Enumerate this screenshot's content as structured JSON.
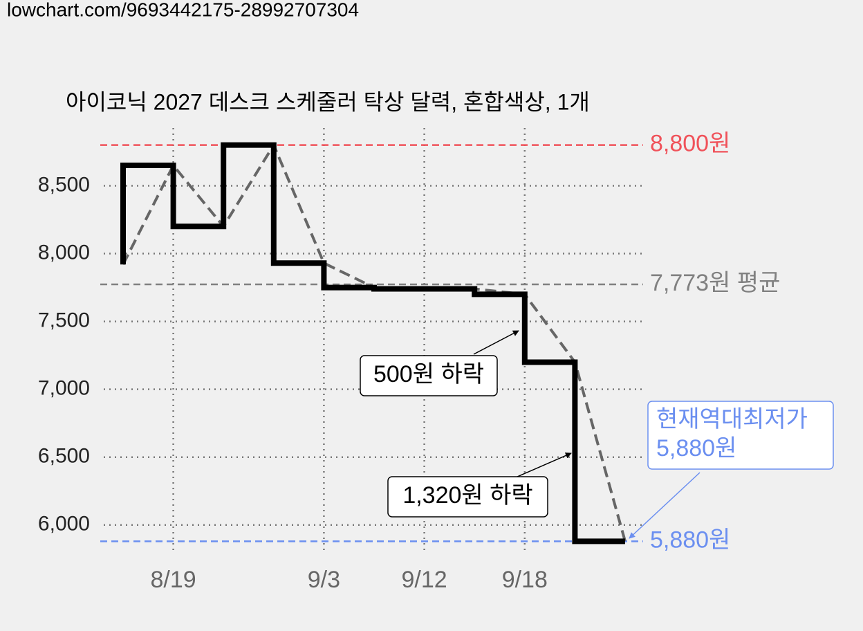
{
  "header": {
    "url": "lowchart.com/9693442175-28992707304"
  },
  "chart_data": {
    "type": "line",
    "title": "아이코닉 2027 데스크 스케줄러 탁상 달력, 혼합색상, 1개",
    "categories": [
      null,
      "8/19",
      null,
      null,
      "9/3",
      null,
      "9/12",
      null,
      "9/18",
      null,
      null
    ],
    "series": [
      {
        "color": "#000000",
        "dash_color": "#666666",
        "values": [
          7920,
          8650,
          8200,
          8800,
          7930,
          7750,
          7740,
          7740,
          7700,
          7200,
          5880
        ]
      }
    ],
    "step": "pre",
    "ylim": [
      5790,
      8900
    ],
    "yticks": [
      {
        "value": 6000,
        "label": "6,000"
      },
      {
        "value": 6500,
        "label": "6,500"
      },
      {
        "value": 7000,
        "label": "7,000"
      },
      {
        "value": 7500,
        "label": "7,500"
      },
      {
        "value": 8000,
        "label": "8,000"
      },
      {
        "value": 8500,
        "label": "8,500"
      }
    ],
    "grid": true,
    "reference_lines": [
      {
        "value": 8800,
        "label": "8,800원",
        "color": "#f0525a"
      },
      {
        "value": 7773,
        "label": "7,773원 평균",
        "color": "#808080"
      },
      {
        "value": 5880,
        "label": "5,880원",
        "color": "#6b8ff0"
      }
    ],
    "annotations": [
      {
        "lines": [
          "500원 하락"
        ]
      },
      {
        "lines": [
          "1,320원 하락"
        ]
      },
      {
        "lines": [
          "현재역대최저가",
          "5,880원"
        ],
        "color": "#6b8ff0"
      }
    ]
  }
}
